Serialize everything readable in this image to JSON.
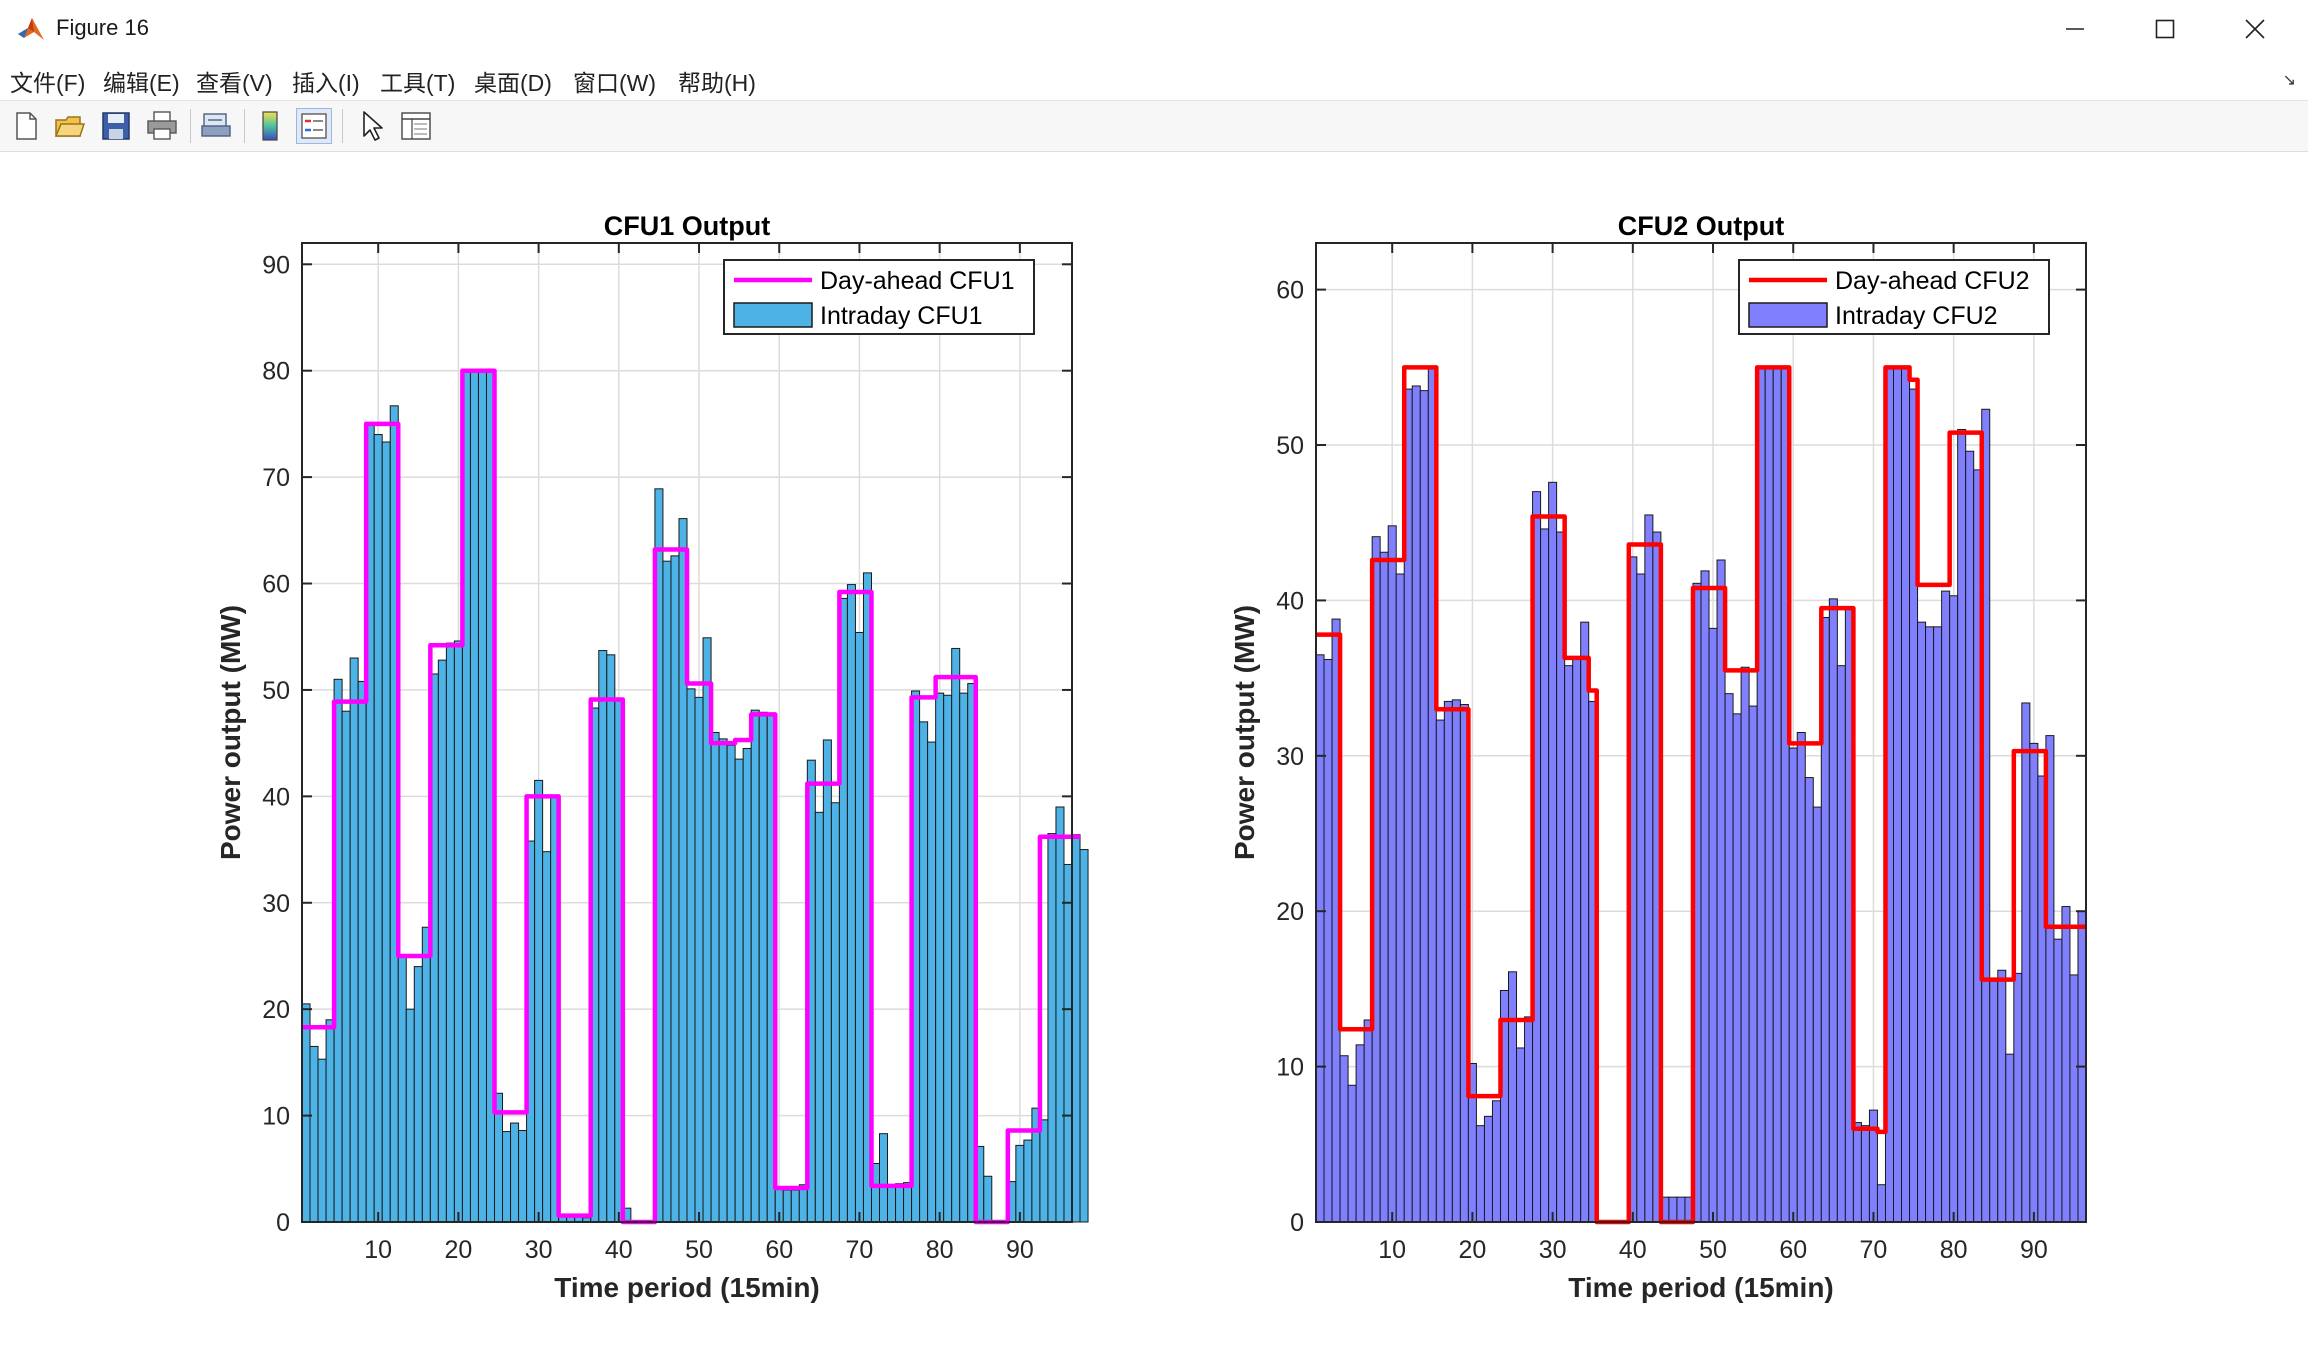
{
  "window": {
    "title": "Figure 16"
  },
  "menu": [
    "文件(F)",
    "编辑(E)",
    "查看(V)",
    "插入(I)",
    "工具(T)",
    "桌面(D)",
    "窗口(W)",
    "帮助(H)"
  ],
  "toolbar": {
    "icons": [
      "new-figure-icon",
      "open-file-icon",
      "save-icon",
      "print-icon",
      "print-preview-icon",
      "colorbar-icon",
      "legend-icon",
      "pointer-icon",
      "property-inspector-icon"
    ]
  },
  "colors": {
    "cfu1_bar": "#4DB3E6",
    "cfu1_line": "#FF00FF",
    "cfu2_bar": "#8080FF",
    "cfu2_line": "#FF0000"
  },
  "chart_data": [
    {
      "type": "bar",
      "title": "CFU1 Output",
      "xlabel": "Time period (15min)",
      "ylabel": "Power output (MW)",
      "xlim": [
        0.5,
        96.5
      ],
      "ylim": [
        0,
        92
      ],
      "xticks": [
        10,
        20,
        30,
        40,
        50,
        60,
        70,
        80,
        90
      ],
      "yticks": [
        0,
        10,
        20,
        30,
        40,
        50,
        60,
        70,
        80,
        90
      ],
      "grid": true,
      "legend": {
        "location": "top-right",
        "entries": [
          "Day-ahead CFU1",
          "Intraday CFU1"
        ]
      },
      "series": [
        {
          "name": "Intraday CFU1",
          "kind": "bar",
          "values": [
            20.5,
            16.5,
            15.3,
            19,
            51,
            48,
            53,
            50.8,
            75,
            74,
            73.3,
            76.7,
            25,
            20,
            24,
            27.7,
            51.5,
            52.8,
            54.4,
            54.6,
            80,
            80,
            80,
            80,
            12.1,
            8.5,
            9.3,
            8.6,
            35.8,
            41.5,
            34.8,
            39.9,
            0.6,
            0.6,
            0.6,
            0.4,
            48.3,
            53.7,
            53.3,
            49.2,
            1.3,
            0,
            0,
            0,
            68.9,
            62.1,
            62.6,
            66.1,
            50.1,
            49.3,
            54.9,
            46,
            45.4,
            44.8,
            43.5,
            44.5,
            48.1,
            47.9,
            47.8,
            3.2,
            3,
            3,
            3.5,
            43.4,
            38.5,
            45.3,
            39.4,
            58.6,
            59.9,
            55.4,
            61,
            5.5,
            8.3,
            3.5,
            3.6,
            3.7,
            49.9,
            47,
            45.1,
            49.7,
            49.5,
            53.9,
            49.7,
            50.6,
            7.1,
            4.3,
            0,
            0,
            3.8,
            7.2,
            7.7,
            10.7,
            9.6,
            36.5,
            39,
            33.6,
            36.4,
            35
          ]
        },
        {
          "name": "Day-ahead CFU1",
          "kind": "step-line",
          "values": [
            18.3,
            18.3,
            18.3,
            18.3,
            48.9,
            48.9,
            48.9,
            48.9,
            75,
            75,
            75,
            75,
            25,
            25,
            25,
            25,
            54.2,
            54.2,
            54.2,
            54.2,
            80,
            80,
            80,
            80,
            10.3,
            10.3,
            10.3,
            10.3,
            40,
            40,
            40,
            40,
            0.6,
            0.6,
            0.6,
            0.6,
            49.1,
            49.1,
            49.1,
            49.1,
            0,
            0,
            0,
            0,
            63.2,
            63.2,
            63.2,
            63.2,
            50.6,
            50.6,
            50.6,
            45,
            45,
            45,
            45.3,
            45.3,
            47.7,
            47.7,
            47.7,
            3.2,
            3.2,
            3.2,
            3.2,
            41.2,
            41.2,
            41.2,
            41.2,
            59.2,
            59.2,
            59.2,
            59.2,
            3.4,
            3.4,
            3.4,
            3.4,
            3.4,
            49.3,
            49.3,
            49.3,
            51.2,
            51.2,
            51.2,
            51.2,
            51.2,
            0,
            0,
            0,
            0,
            8.6,
            8.6,
            8.6,
            8.6,
            36.2,
            36.2,
            36.2,
            36.2,
            36.2
          ]
        }
      ]
    },
    {
      "type": "bar",
      "title": "CFU2 Output",
      "xlabel": "Time period (15min)",
      "ylabel": "Power output (MW)",
      "xlim": [
        0.5,
        96.5
      ],
      "ylim": [
        0,
        63
      ],
      "xticks": [
        10,
        20,
        30,
        40,
        50,
        60,
        70,
        80,
        90
      ],
      "yticks": [
        0,
        10,
        20,
        30,
        40,
        50,
        60
      ],
      "grid": true,
      "legend": {
        "location": "top-right",
        "entries": [
          "Day-ahead CFU2",
          "Intraday CFU2"
        ]
      },
      "series": [
        {
          "name": "Intraday CFU2",
          "kind": "bar",
          "values": [
            36.5,
            36.2,
            38.8,
            10.7,
            8.8,
            11.4,
            13,
            44.1,
            43.1,
            44.8,
            41.7,
            53.6,
            53.8,
            53.5,
            55,
            32.3,
            33.5,
            33.6,
            33.3,
            10.2,
            6.2,
            6.8,
            7.8,
            14.9,
            16.1,
            11.2,
            13.2,
            47,
            44.6,
            47.6,
            44.4,
            35.8,
            36.2,
            38.6,
            33.5,
            0,
            0,
            0,
            0,
            42.8,
            41.7,
            45.5,
            44.4,
            1.6,
            1.6,
            1.6,
            1.6,
            41.1,
            41.9,
            38.2,
            42.6,
            34,
            32.7,
            35.7,
            33.2,
            55,
            55,
            55,
            55,
            30.5,
            31.5,
            28.6,
            26.7,
            38.9,
            40.1,
            35.8,
            39.5,
            6.4,
            6.2,
            7.2,
            2.4,
            55,
            55,
            55,
            53.6,
            38.6,
            38.3,
            38.3,
            40.6,
            40.3,
            51,
            49.6,
            48.4,
            52.3,
            15.5,
            16.2,
            10.8,
            16,
            33.4,
            30.8,
            28.7,
            31.3,
            18.2,
            20.3,
            15.9,
            20
          ]
        },
        {
          "name": "Day-ahead CFU2",
          "kind": "step-line",
          "values": [
            37.8,
            37.8,
            37.8,
            12.4,
            12.4,
            12.4,
            12.4,
            42.6,
            42.6,
            42.6,
            42.6,
            55,
            55,
            55,
            55,
            33,
            33,
            33,
            33,
            8.1,
            8.1,
            8.1,
            8.1,
            13,
            13,
            13,
            13,
            45.4,
            45.4,
            45.4,
            45.4,
            36.3,
            36.3,
            36.3,
            34.2,
            0,
            0,
            0,
            0,
            43.6,
            43.6,
            43.6,
            43.6,
            0,
            0,
            0,
            0,
            40.8,
            40.8,
            40.8,
            40.8,
            35.5,
            35.5,
            35.5,
            35.5,
            55,
            55,
            55,
            55,
            30.8,
            30.8,
            30.8,
            30.8,
            39.5,
            39.5,
            39.5,
            39.5,
            6,
            6,
            6,
            5.8,
            55,
            55,
            55,
            54.2,
            41,
            41,
            41,
            41,
            50.8,
            50.8,
            50.8,
            50.8,
            15.6,
            15.6,
            15.6,
            15.6,
            30.3,
            30.3,
            30.3,
            30.3,
            19,
            19,
            19,
            19,
            19
          ]
        }
      ]
    }
  ]
}
